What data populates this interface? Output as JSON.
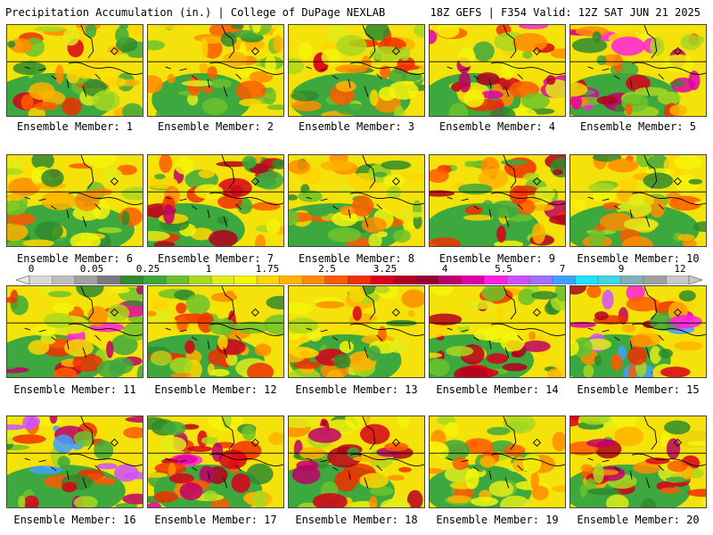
{
  "header": {
    "left": "Precipitation Accumulation (in.) | College of DuPage NEXLAB",
    "right": "18Z GEFS | F354 Valid: 12Z SAT JUN 21 2025"
  },
  "members": [
    {
      "label": "Ensemble Member: 1"
    },
    {
      "label": "Ensemble Member: 2"
    },
    {
      "label": "Ensemble Member: 3"
    },
    {
      "label": "Ensemble Member: 4"
    },
    {
      "label": "Ensemble Member: 5"
    },
    {
      "label": "Ensemble Member: 6"
    },
    {
      "label": "Ensemble Member: 7"
    },
    {
      "label": "Ensemble Member: 8"
    },
    {
      "label": "Ensemble Member: 9"
    },
    {
      "label": "Ensemble Member: 10"
    },
    {
      "label": "Ensemble Member: 11"
    },
    {
      "label": "Ensemble Member: 12"
    },
    {
      "label": "Ensemble Member: 13"
    },
    {
      "label": "Ensemble Member: 14"
    },
    {
      "label": "Ensemble Member: 15"
    },
    {
      "label": "Ensemble Member: 16"
    },
    {
      "label": "Ensemble Member: 17"
    },
    {
      "label": "Ensemble Member: 18"
    },
    {
      "label": "Ensemble Member: 19"
    },
    {
      "label": "Ensemble Member: 20"
    }
  ],
  "colorbar": {
    "tick_labels": [
      "0",
      "0.05",
      "0.25",
      "1",
      "1.75",
      "2.5",
      "3.25",
      "4",
      "5.5",
      "7",
      "9",
      "12"
    ],
    "colors": [
      "#d9d9d9",
      "#bdbdbd",
      "#a0a0a0",
      "#7a7a7a",
      "#2e8b2e",
      "#3da83d",
      "#6cc22b",
      "#a8d81f",
      "#e0ec1a",
      "#f5f50a",
      "#ffd500",
      "#ffb300",
      "#ff8c00",
      "#ff5a00",
      "#f03000",
      "#d8001a",
      "#b4001e",
      "#9a0030",
      "#c0006a",
      "#e000a8",
      "#ff20e0",
      "#d050ff",
      "#a070ff",
      "#40a0ff",
      "#20e0ff",
      "#40d8e0",
      "#80b0b8",
      "#a0a0a0",
      "#c8c8c8"
    ]
  }
}
